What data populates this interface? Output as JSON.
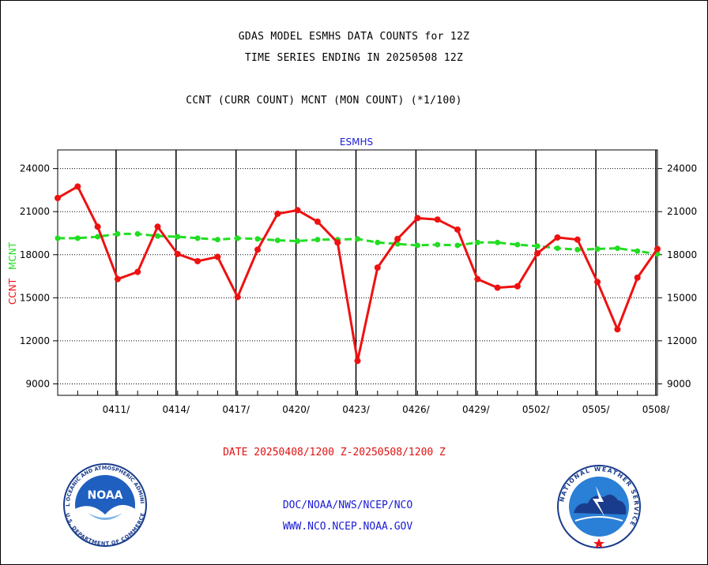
{
  "header": {
    "line1": "GDAS MODEL ESMHS DATA COUNTS for 12Z",
    "line2": "TIME SERIES ENDING IN 20250508 12Z",
    "line3": "CCNT (CURR COUNT) MCNT (MON COUNT) (*1/100)"
  },
  "chart_data": {
    "type": "line",
    "title": "ESMHS",
    "ylabel_left_ccnt": "CCNT",
    "ylabel_left_mcnt": "MCNT",
    "ylim": [
      8200,
      25300
    ],
    "yticks": [
      9000,
      12000,
      15000,
      18000,
      21000,
      24000
    ],
    "ytick_labels": [
      "9000",
      "12000",
      "15000",
      "18000",
      "21000",
      "24000"
    ],
    "xlim": [
      0,
      30
    ],
    "xticks": [
      3,
      6,
      9,
      12,
      15,
      18,
      21,
      24,
      27,
      30
    ],
    "xtick_labels": [
      "0411/",
      "0414/",
      "0417/",
      "0420/",
      "0423/",
      "0426/",
      "0429/",
      "0502/",
      "0505/",
      "0508/"
    ],
    "grid": true,
    "series": [
      {
        "name": "CCNT",
        "color": "#ee1111",
        "values": [
          21950,
          22750,
          19950,
          16300,
          16800,
          19950,
          18050,
          17550,
          17850,
          15050,
          18350,
          20850,
          21100,
          20300,
          18850,
          10600,
          17100,
          19100,
          20550,
          20450,
          19750,
          16300,
          15700,
          15800,
          18100,
          19200,
          19050,
          16100,
          12800,
          16400,
          18400
        ]
      },
      {
        "name": "MCNT",
        "color": "#22dd22",
        "values": [
          19150,
          19150,
          19250,
          19450,
          19450,
          19300,
          19250,
          19150,
          19050,
          19150,
          19100,
          19000,
          18950,
          19050,
          19050,
          19100,
          18850,
          18750,
          18650,
          18700,
          18650,
          18850,
          18850,
          18700,
          18600,
          18450,
          18350,
          18400,
          18450,
          18250,
          18050
        ]
      }
    ]
  },
  "x_axis_caption": "DATE 20250408/1200 Z-20250508/1200 Z",
  "footer": {
    "line1": "DOC/NOAA/NWS/NCEP/NCO",
    "line2": "WWW.NCO.NCEP.NOAA.GOV"
  },
  "logos": {
    "noaa_ring_text": "NATIONAL OCEANIC AND ATMOSPHERIC ADMINISTRATION",
    "noaa_ring_text_bottom": "U.S. DEPARTMENT OF COMMERCE",
    "noaa_center": "NOAA",
    "nws_ring_text": "NATIONAL WEATHER SERVICE"
  },
  "colors": {
    "ccnt": "#ee1111",
    "mcnt": "#22dd22",
    "title": "#1a1ad6",
    "footer": "#1a1ad6"
  }
}
